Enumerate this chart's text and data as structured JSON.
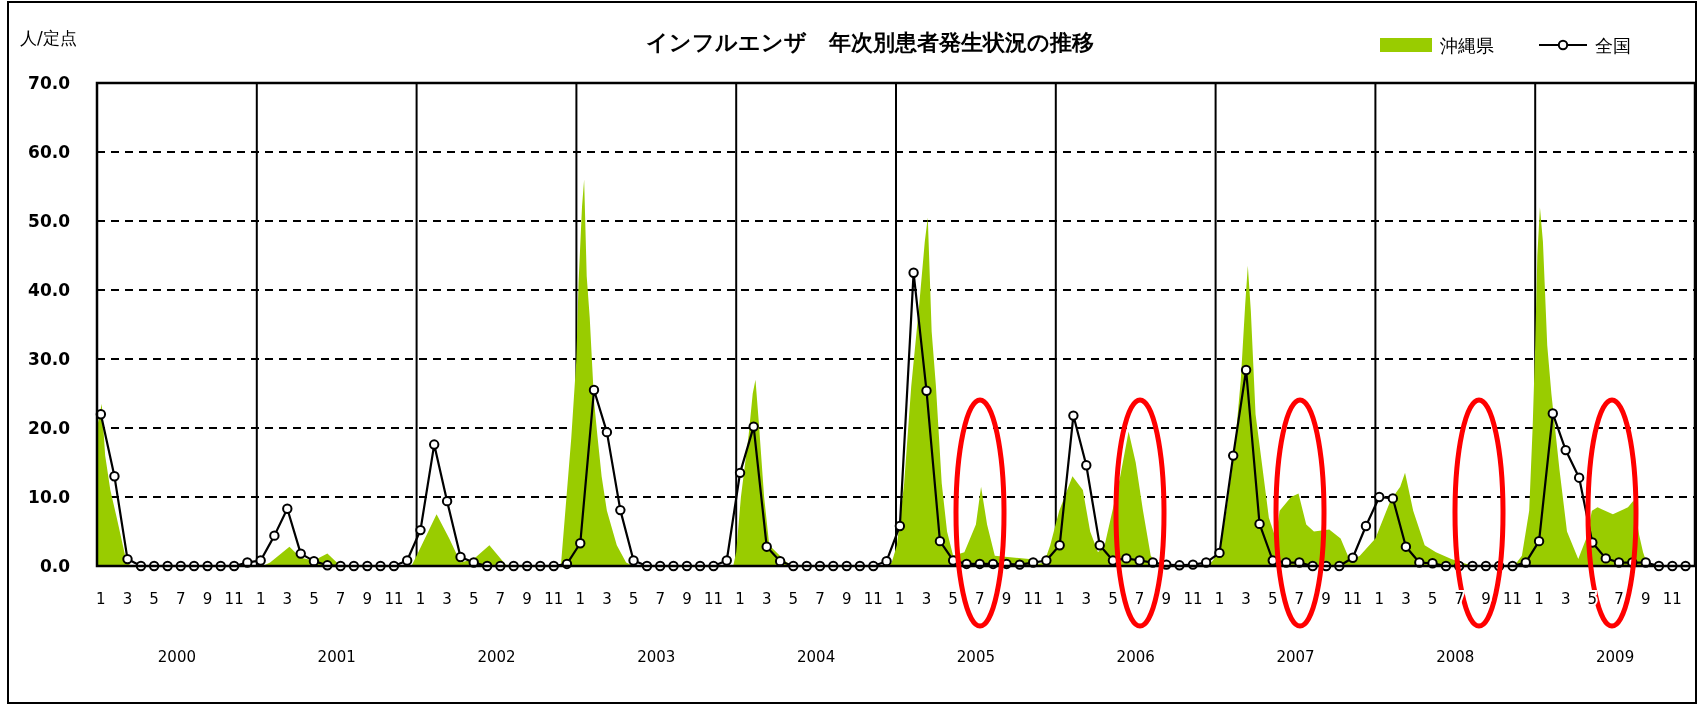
{
  "chart_data": {
    "type": "line",
    "title": "インフルエンザ　年次別患者発生状況の推移",
    "ylabel": "人/定点",
    "xlim": [
      "2000-01-01",
      "2010-01-01"
    ],
    "ylim": [
      0,
      70
    ],
    "yticks": [
      {
        "value": 0,
        "label": "0.0"
      },
      {
        "value": 10,
        "label": "10.0"
      },
      {
        "value": 20,
        "label": "20.0"
      },
      {
        "value": 30,
        "label": "30.0"
      },
      {
        "value": 40,
        "label": "40.0"
      },
      {
        "value": 50,
        "label": "50.0"
      },
      {
        "value": 60,
        "label": "60.0"
      },
      {
        "value": 70,
        "label": "70.0"
      }
    ],
    "xticks": [
      {
        "value": "2000-01-10",
        "label": "1"
      },
      {
        "value": "2000-03-10",
        "label": "3"
      },
      {
        "value": "2000-05-10",
        "label": "5"
      },
      {
        "value": "2000-07-10",
        "label": "7"
      },
      {
        "value": "2000-09-10",
        "label": "9"
      },
      {
        "value": "2000-11-10",
        "label": "11"
      },
      {
        "value": "2001-01-10",
        "label": "1"
      },
      {
        "value": "2001-03-10",
        "label": "3"
      },
      {
        "value": "2001-05-10",
        "label": "5"
      },
      {
        "value": "2001-07-10",
        "label": "7"
      },
      {
        "value": "2001-09-10",
        "label": "9"
      },
      {
        "value": "2001-11-10",
        "label": "11"
      },
      {
        "value": "2002-01-10",
        "label": "1"
      },
      {
        "value": "2002-03-10",
        "label": "3"
      },
      {
        "value": "2002-05-10",
        "label": "5"
      },
      {
        "value": "2002-07-10",
        "label": "7"
      },
      {
        "value": "2002-09-10",
        "label": "9"
      },
      {
        "value": "2002-11-10",
        "label": "11"
      },
      {
        "value": "2003-01-10",
        "label": "1"
      },
      {
        "value": "2003-03-10",
        "label": "3"
      },
      {
        "value": "2003-05-10",
        "label": "5"
      },
      {
        "value": "2003-07-10",
        "label": "7"
      },
      {
        "value": "2003-09-10",
        "label": "9"
      },
      {
        "value": "2003-11-10",
        "label": "11"
      },
      {
        "value": "2004-01-10",
        "label": "1"
      },
      {
        "value": "2004-03-10",
        "label": "3"
      },
      {
        "value": "2004-05-10",
        "label": "5"
      },
      {
        "value": "2004-07-10",
        "label": "7"
      },
      {
        "value": "2004-09-10",
        "label": "9"
      },
      {
        "value": "2004-11-10",
        "label": "11"
      },
      {
        "value": "2005-01-10",
        "label": "1"
      },
      {
        "value": "2005-03-10",
        "label": "3"
      },
      {
        "value": "2005-05-10",
        "label": "5"
      },
      {
        "value": "2005-07-10",
        "label": "7"
      },
      {
        "value": "2005-09-10",
        "label": "9"
      },
      {
        "value": "2005-11-10",
        "label": "11"
      },
      {
        "value": "2006-01-10",
        "label": "1"
      },
      {
        "value": "2006-03-10",
        "label": "3"
      },
      {
        "value": "2006-05-10",
        "label": "5"
      },
      {
        "value": "2006-07-10",
        "label": "7"
      },
      {
        "value": "2006-09-10",
        "label": "9"
      },
      {
        "value": "2006-11-10",
        "label": "11"
      },
      {
        "value": "2007-01-10",
        "label": "1"
      },
      {
        "value": "2007-03-10",
        "label": "3"
      },
      {
        "value": "2007-05-10",
        "label": "5"
      },
      {
        "value": "2007-07-10",
        "label": "7"
      },
      {
        "value": "2007-09-10",
        "label": "9"
      },
      {
        "value": "2007-11-10",
        "label": "11"
      },
      {
        "value": "2008-01-10",
        "label": "1"
      },
      {
        "value": "2008-03-10",
        "label": "3"
      },
      {
        "value": "2008-05-10",
        "label": "5"
      },
      {
        "value": "2008-07-10",
        "label": "7"
      },
      {
        "value": "2008-09-10",
        "label": "9"
      },
      {
        "value": "2008-11-10",
        "label": "11"
      },
      {
        "value": "2009-01-10",
        "label": "1"
      },
      {
        "value": "2009-03-10",
        "label": "3"
      },
      {
        "value": "2009-05-10",
        "label": "5"
      },
      {
        "value": "2009-07-10",
        "label": "7"
      },
      {
        "value": "2009-09-10",
        "label": "9"
      },
      {
        "value": "2009-11-10",
        "label": "11"
      }
    ],
    "grid": "y",
    "legend": "top right",
    "ref_lines": [
      {
        "axis": "x",
        "value": "2001-01-01"
      },
      {
        "axis": "x",
        "value": "2002-01-01"
      },
      {
        "axis": "x",
        "value": "2003-01-01"
      },
      {
        "axis": "x",
        "value": "2004-01-01"
      },
      {
        "axis": "x",
        "value": "2005-01-01"
      },
      {
        "axis": "x",
        "value": "2006-01-01"
      },
      {
        "axis": "x",
        "value": "2007-01-01"
      },
      {
        "axis": "x",
        "value": "2008-01-01"
      },
      {
        "axis": "x",
        "value": "2009-01-01"
      }
    ],
    "annotations": [
      "2000",
      "2001",
      "2002",
      "2003",
      "2004",
      "2005",
      "2006",
      "2007",
      "2008",
      "2009"
    ],
    "series": [
      {
        "name": "沖縄県",
        "type": "area",
        "color": "#99cc00",
        "x": [
          "2000-01-01",
          "2000-01-12",
          "2000-01-20",
          "2000-02-01",
          "2000-02-15",
          "2000-02-25",
          "2000-03-08",
          "2000-03-20",
          "2001-01-15",
          "2001-02-01",
          "2001-03-15",
          "2001-04-10",
          "2001-05-10",
          "2001-06-10",
          "2001-07-05",
          "2001-07-20",
          "2001-12-20",
          "2002-01-01",
          "2002-02-15",
          "2002-03-15",
          "2002-04-10",
          "2002-05-10",
          "2002-06-15",
          "2002-07-25",
          "2002-11-26",
          "2002-12-20",
          "2003-01-01",
          "2003-01-06",
          "2003-01-14",
          "2003-01-19",
          "2003-01-25",
          "2003-02-01",
          "2003-02-10",
          "2003-02-17",
          "2003-02-26",
          "2003-03-10",
          "2003-04-02",
          "2003-04-23",
          "2003-05-10",
          "2003-12-25",
          "2004-01-01",
          "2004-01-12",
          "2004-01-30",
          "2004-02-08",
          "2004-02-14",
          "2004-02-21",
          "2004-03-04",
          "2004-03-16",
          "2004-04-25",
          "2004-05-15",
          "2004-12-10",
          "2004-12-22",
          "2005-01-03",
          "2005-01-20",
          "2005-02-05",
          "2005-02-22",
          "2005-03-06",
          "2005-03-13",
          "2005-03-22",
          "2005-04-01",
          "2005-04-14",
          "2005-04-26",
          "2005-05-10",
          "2005-06-05",
          "2005-07-01",
          "2005-07-13",
          "2005-07-27",
          "2005-08-14",
          "2005-11-01",
          "2005-11-19",
          "2005-12-05",
          "2005-12-19",
          "2006-01-09",
          "2006-02-08",
          "2006-03-02",
          "2006-03-19",
          "2006-04-06",
          "2006-04-21",
          "2006-05-27",
          "2006-06-15",
          "2006-07-01",
          "2006-07-18",
          "2006-08-05",
          "2006-08-20",
          "2006-09-10",
          "2006-12-10",
          "2006-12-22",
          "2007-01-09",
          "2007-01-26",
          "2007-02-13",
          "2007-02-26",
          "2007-03-08",
          "2007-03-14",
          "2007-03-21",
          "2007-04-01",
          "2007-04-13",
          "2007-05-01",
          "2007-05-17",
          "2007-05-26",
          "2007-06-21",
          "2007-07-08",
          "2007-07-26",
          "2007-08-13",
          "2007-09-17",
          "2007-10-13",
          "2007-10-30",
          "2007-11-12",
          "2007-11-26",
          "2008-01-01",
          "2008-02-05",
          "2008-02-26",
          "2008-03-08",
          "2008-03-27",
          "2008-04-22",
          "2008-05-18",
          "2008-06-22",
          "2008-07-27",
          "2008-08-30",
          "2008-10-22",
          "2008-11-17",
          "2008-12-01",
          "2008-12-18",
          "2008-12-26",
          "2009-01-01",
          "2009-01-06",
          "2009-01-12",
          "2009-01-19",
          "2009-01-29",
          "2009-02-07",
          "2009-02-24",
          "2009-03-13",
          "2009-04-08",
          "2009-04-26",
          "2009-05-09",
          "2009-05-22",
          "2009-06-26",
          "2009-07-31",
          "2009-08-13",
          "2009-08-26",
          "2009-09-04",
          "2009-09-13",
          "2009-09-25",
          "2009-12-31"
        ],
        "values": [
          20,
          23.5,
          16,
          11,
          7,
          4,
          0.5,
          0,
          0,
          0.5,
          2.8,
          1.2,
          0.8,
          1.8,
          0.3,
          0,
          0,
          1.5,
          7.5,
          4,
          0.5,
          1,
          3,
          0,
          0,
          18.5,
          30,
          41,
          52,
          56,
          42,
          36,
          24,
          19,
          13,
          8,
          3,
          0.5,
          0,
          0,
          2,
          10,
          19,
          25,
          27,
          21,
          10,
          3,
          0.5,
          0,
          0,
          0.5,
          3,
          12,
          26,
          38,
          47,
          50.5,
          34,
          26,
          12,
          5,
          1.5,
          2,
          6,
          11.5,
          6,
          1.5,
          1,
          0.3,
          0.5,
          3,
          8,
          13,
          11,
          5,
          2,
          3,
          13,
          19.5,
          15,
          8,
          1.5,
          0.3,
          0,
          0,
          0.5,
          2,
          8,
          17,
          27,
          38,
          43.5,
          37,
          22,
          16,
          7,
          4,
          8,
          10,
          10.5,
          6,
          5,
          5.3,
          4,
          1.5,
          1,
          1.5,
          4,
          9.5,
          11.5,
          13.5,
          8,
          3,
          2,
          1,
          0.3,
          0.1,
          0,
          0.3,
          1.5,
          8,
          20,
          32,
          45,
          52,
          47,
          32,
          25,
          14,
          5,
          1,
          4,
          8,
          8.5,
          7.5,
          8.5,
          9.5,
          4.5,
          2,
          0.3,
          0,
          0
        ]
      },
      {
        "name": "全国",
        "type": "line",
        "color": "#000000",
        "marker": "circle",
        "x": [
          "2000-01-10",
          "2000-02-10",
          "2000-03-10",
          "2000-04-10",
          "2000-05-10",
          "2000-06-10",
          "2000-07-10",
          "2000-08-10",
          "2000-09-10",
          "2000-10-10",
          "2000-11-10",
          "2000-12-10",
          "2001-01-10",
          "2001-02-10",
          "2001-03-10",
          "2001-04-10",
          "2001-05-10",
          "2001-06-10",
          "2001-07-10",
          "2001-08-10",
          "2001-09-10",
          "2001-10-10",
          "2001-11-10",
          "2001-12-10",
          "2002-01-10",
          "2002-02-10",
          "2002-03-10",
          "2002-04-10",
          "2002-05-10",
          "2002-06-10",
          "2002-07-10",
          "2002-08-10",
          "2002-09-10",
          "2002-10-10",
          "2002-11-10",
          "2002-12-10",
          "2003-01-10",
          "2003-02-10",
          "2003-03-10",
          "2003-04-10",
          "2003-05-10",
          "2003-06-10",
          "2003-07-10",
          "2003-08-10",
          "2003-09-10",
          "2003-10-10",
          "2003-11-10",
          "2003-12-10",
          "2004-01-10",
          "2004-02-10",
          "2004-03-10",
          "2004-04-10",
          "2004-05-10",
          "2004-06-10",
          "2004-07-10",
          "2004-08-10",
          "2004-09-10",
          "2004-10-10",
          "2004-11-10",
          "2004-12-10",
          "2005-01-10",
          "2005-02-10",
          "2005-03-10",
          "2005-04-10",
          "2005-05-10",
          "2005-06-10",
          "2005-07-10",
          "2005-08-10",
          "2005-09-10",
          "2005-10-10",
          "2005-11-10",
          "2005-12-10",
          "2006-01-10",
          "2006-02-10",
          "2006-03-10",
          "2006-04-10",
          "2006-05-10",
          "2006-06-10",
          "2006-07-10",
          "2006-08-10",
          "2006-09-10",
          "2006-10-10",
          "2006-11-10",
          "2006-12-10",
          "2007-01-10",
          "2007-02-10",
          "2007-03-10",
          "2007-04-10",
          "2007-05-10",
          "2007-06-10",
          "2007-07-10",
          "2007-08-10",
          "2007-09-10",
          "2007-10-10",
          "2007-11-10",
          "2007-12-10",
          "2008-01-10",
          "2008-02-10",
          "2008-03-10",
          "2008-04-10",
          "2008-05-10",
          "2008-06-10",
          "2008-07-10",
          "2008-08-10",
          "2008-09-10",
          "2008-10-10",
          "2008-11-10",
          "2008-12-10",
          "2009-01-10",
          "2009-02-10",
          "2009-03-10",
          "2009-04-10",
          "2009-05-10",
          "2009-06-10",
          "2009-07-10",
          "2009-08-10",
          "2009-09-10",
          "2009-10-10",
          "2009-11-10",
          "2009-12-10"
        ],
        "values": [
          22,
          13,
          1,
          0,
          0,
          0,
          0,
          0,
          0,
          0,
          0,
          0.5,
          0.8,
          4.4,
          8.3,
          1.8,
          0.7,
          0.1,
          0,
          0,
          0,
          0,
          0,
          0.8,
          5.2,
          17.6,
          9.4,
          1.3,
          0.5,
          0,
          0,
          0,
          0,
          0,
          0,
          0.3,
          3.3,
          25.5,
          19.4,
          8.1,
          0.8,
          0,
          0,
          0,
          0,
          0,
          0,
          0.8,
          13.5,
          20.2,
          2.8,
          0.7,
          0,
          0,
          0,
          0,
          0,
          0,
          0,
          0.7,
          5.8,
          42.5,
          25.4,
          3.6,
          0.8,
          0.3,
          0.3,
          0.3,
          0.3,
          0.2,
          0.5,
          0.8,
          3,
          21.8,
          14.6,
          3,
          0.8,
          1.1,
          0.8,
          0.5,
          0.2,
          0.1,
          0.2,
          0.5,
          1.9,
          16,
          28.4,
          6.1,
          0.8,
          0.5,
          0.5,
          0,
          0,
          0,
          1.2,
          5.8,
          10,
          9.8,
          2.8,
          0.5,
          0.4,
          0,
          0,
          0,
          0,
          0,
          0,
          0.5,
          3.6,
          22.1,
          16.8,
          12.8,
          3.4,
          1.1,
          0.5,
          0.5,
          0.5,
          0,
          0,
          0
        ]
      }
    ]
  }
}
